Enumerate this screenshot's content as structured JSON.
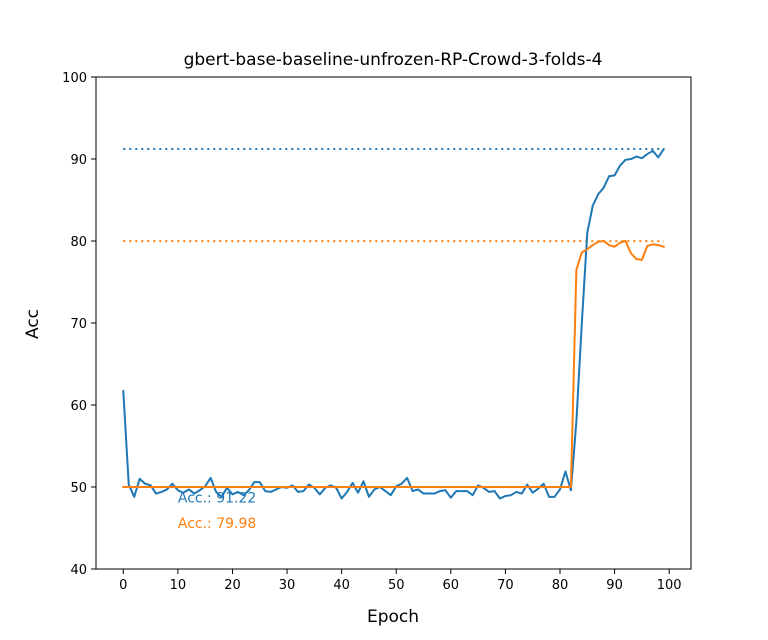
{
  "chart_data": {
    "type": "line",
    "title": "gbert-base-baseline-unfrozen-RP-Crowd-3-folds-4",
    "xlabel": "Epoch",
    "ylabel": "Acc",
    "xlim": [
      -5,
      104
    ],
    "ylim": [
      40,
      100
    ],
    "xticks": [
      0,
      10,
      20,
      30,
      40,
      50,
      60,
      70,
      80,
      90,
      100
    ],
    "yticks": [
      40,
      50,
      60,
      70,
      80,
      90,
      100
    ],
    "grid": false,
    "series": [
      {
        "color": "#1f77b4",
        "x": [
          0,
          1,
          2,
          3,
          4,
          5,
          6,
          7,
          8,
          9,
          10,
          11,
          12,
          13,
          14,
          15,
          16,
          17,
          18,
          19,
          20,
          21,
          22,
          23,
          24,
          25,
          26,
          27,
          28,
          29,
          30,
          31,
          32,
          33,
          34,
          35,
          36,
          37,
          38,
          39,
          40,
          41,
          42,
          43,
          44,
          45,
          46,
          47,
          48,
          49,
          50,
          51,
          52,
          53,
          54,
          55,
          56,
          57,
          58,
          59,
          60,
          61,
          62,
          63,
          64,
          65,
          66,
          67,
          68,
          69,
          70,
          71,
          72,
          73,
          74,
          75,
          76,
          77,
          78,
          79,
          80,
          81,
          82,
          83,
          84,
          85,
          86,
          87,
          88,
          89,
          90,
          91,
          92,
          93,
          94,
          95,
          96,
          97,
          98,
          99
        ],
        "values": [
          61.7,
          50.3,
          48.8,
          51.0,
          50.4,
          50.2,
          49.2,
          49.4,
          49.7,
          50.4,
          49.6,
          49.3,
          49.7,
          49.2,
          49.6,
          50.1,
          51.1,
          49.4,
          48.8,
          49.9,
          49.1,
          49.4,
          49.0,
          49.6,
          50.6,
          50.6,
          49.5,
          49.4,
          49.7,
          50.0,
          49.9,
          50.2,
          49.4,
          49.5,
          50.3,
          49.9,
          49.1,
          49.9,
          50.2,
          49.9,
          48.6,
          49.4,
          50.5,
          49.3,
          50.7,
          48.8,
          49.7,
          50.0,
          49.5,
          49.0,
          50.1,
          50.4,
          51.1,
          49.5,
          49.7,
          49.2,
          49.2,
          49.2,
          49.5,
          49.6,
          48.7,
          49.5,
          49.5,
          49.5,
          49.0,
          50.2,
          49.9,
          49.4,
          49.5,
          48.6,
          48.9,
          49.0,
          49.4,
          49.2,
          50.3,
          49.3,
          49.8,
          50.4,
          48.8,
          48.8,
          49.7,
          51.9,
          49.6,
          58.0,
          70.0,
          81.0,
          84.3,
          85.7,
          86.5,
          87.9,
          88.0,
          89.2,
          89.9,
          90.0,
          90.3,
          90.1,
          90.6,
          91.0,
          90.2,
          91.2
        ]
      },
      {
        "color": "#ff7f0e",
        "x": [
          0,
          1,
          2,
          3,
          4,
          5,
          6,
          7,
          8,
          9,
          10,
          11,
          12,
          13,
          14,
          15,
          16,
          17,
          18,
          19,
          20,
          21,
          22,
          23,
          24,
          25,
          26,
          27,
          28,
          29,
          30,
          31,
          32,
          33,
          34,
          35,
          36,
          37,
          38,
          39,
          40,
          41,
          42,
          43,
          44,
          45,
          46,
          47,
          48,
          49,
          50,
          51,
          52,
          53,
          54,
          55,
          56,
          57,
          58,
          59,
          60,
          61,
          62,
          63,
          64,
          65,
          66,
          67,
          68,
          69,
          70,
          71,
          72,
          73,
          74,
          75,
          76,
          77,
          78,
          79,
          80,
          81,
          82,
          83,
          84,
          85,
          86,
          87,
          88,
          89,
          90,
          91,
          92,
          93,
          94,
          95,
          96,
          97,
          98,
          99
        ],
        "values": [
          50,
          50,
          50,
          50,
          50,
          50,
          50,
          50,
          50,
          50,
          50,
          50,
          50,
          50,
          50,
          50,
          50,
          50,
          50,
          50,
          50,
          50,
          50,
          50,
          50,
          50,
          50,
          50,
          50,
          50,
          50,
          50,
          50,
          50,
          50,
          50,
          50,
          50,
          50,
          50,
          50,
          50,
          50,
          50,
          50,
          50,
          50,
          50,
          50,
          50,
          50,
          50,
          50,
          50,
          50,
          50,
          50,
          50,
          50,
          50,
          50,
          50,
          50,
          50,
          50,
          50,
          50,
          50,
          50,
          50,
          50,
          50,
          50,
          50,
          50,
          50,
          50,
          50,
          50,
          50,
          50,
          50,
          50,
          76.5,
          78.6,
          79.0,
          79.5,
          79.9,
          80.0,
          79.5,
          79.3,
          79.8,
          80.0,
          78.5,
          77.8,
          77.7,
          79.4,
          79.6,
          79.5,
          79.3
        ]
      }
    ],
    "reference_lines": [
      {
        "y": 91.22,
        "color": "#1f77b4",
        "style": "dotted",
        "x_range": [
          0,
          99
        ]
      },
      {
        "y": 79.98,
        "color": "#ff7f0e",
        "style": "dotted",
        "x_range": [
          0,
          99
        ]
      }
    ],
    "annotations": [
      {
        "text": "Acc.: 91.22",
        "x": 10,
        "y": 48.1,
        "color": "#1f77b4"
      },
      {
        "text": "Acc.: 79.98",
        "x": 10,
        "y": 45.0,
        "color": "#ff7f0e"
      }
    ]
  }
}
